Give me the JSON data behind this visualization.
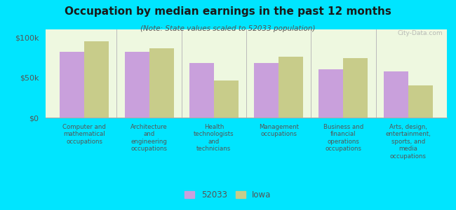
{
  "title": "Occupation by median earnings in the past 12 months",
  "subtitle": "(Note: State values scaled to 52033 population)",
  "categories": [
    "Computer and\nmathematical\noccupations",
    "Architecture\nand\nengineering\noccupations",
    "Health\ntechnologists\nand\ntechnicians",
    "Management\noccupations",
    "Business and\nfinancial\noperations\noccupations",
    "Arts, design,\nentertainment,\nsports, and\nmedia\noccupations"
  ],
  "values_52033": [
    82000,
    82000,
    68000,
    68000,
    60000,
    58000
  ],
  "values_iowa": [
    95000,
    86000,
    46000,
    76000,
    74000,
    40000
  ],
  "color_52033": "#c9a0dc",
  "color_iowa": "#c8cc8a",
  "background_chart": "#eef8e0",
  "background_fig": "#00e5ff",
  "yticks": [
    0,
    50000,
    100000
  ],
  "ytick_labels": [
    "$0",
    "$50k",
    "$100k"
  ],
  "ylim": [
    0,
    110000
  ],
  "legend_52033": "52033",
  "legend_iowa": "Iowa",
  "watermark": "City-Data.com"
}
